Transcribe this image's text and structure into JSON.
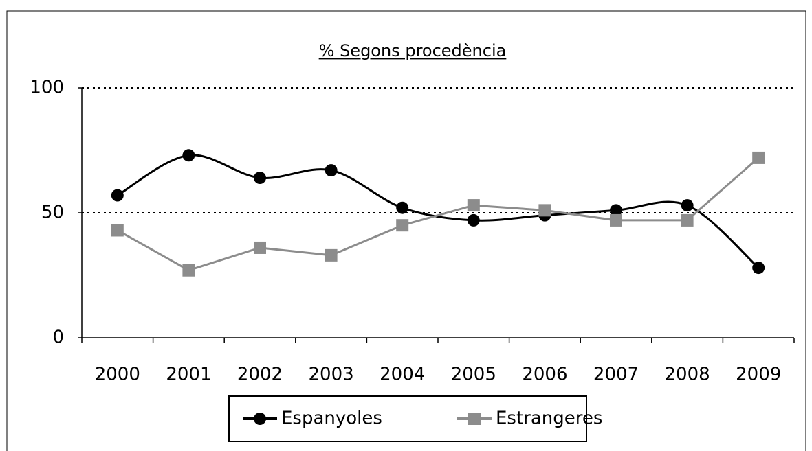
{
  "chart_data": {
    "type": "line",
    "title": "% Segons procedència",
    "categories": [
      "2000",
      "2001",
      "2002",
      "2003",
      "2004",
      "2005",
      "2006",
      "2007",
      "2008",
      "2009"
    ],
    "series": [
      {
        "name": "Espanyoles",
        "color": "#000000",
        "marker": "circle",
        "smooth": true,
        "values": [
          57,
          73,
          64,
          67,
          52,
          47,
          49,
          51,
          53,
          28
        ]
      },
      {
        "name": "Estrangeres",
        "color": "#8c8c8c",
        "marker": "square",
        "smooth": false,
        "values": [
          43,
          27,
          36,
          33,
          45,
          53,
          51,
          47,
          47,
          72
        ]
      }
    ],
    "ylim": [
      0,
      100
    ],
    "yticks": [
      0,
      50,
      100
    ],
    "grid": true,
    "legend": "bottom"
  }
}
